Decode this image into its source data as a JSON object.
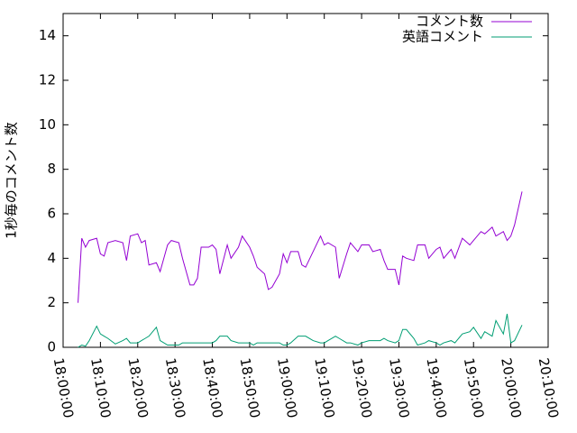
{
  "chart_data": {
    "type": "line",
    "y_label": "1秒毎のコメント数",
    "x": [
      "18:04:00",
      "18:05:00",
      "18:06:00",
      "18:07:00",
      "18:09:00",
      "18:10:00",
      "18:11:00",
      "18:12:00",
      "18:14:00",
      "18:16:00",
      "18:17:00",
      "18:18:00",
      "18:20:00",
      "18:21:00",
      "18:22:00",
      "18:23:00",
      "18:25:00",
      "18:26:00",
      "18:28:00",
      "18:29:00",
      "18:31:00",
      "18:32:00",
      "18:34:00",
      "18:35:00",
      "18:36:00",
      "18:37:00",
      "18:39:00",
      "18:40:00",
      "18:41:00",
      "18:42:00",
      "18:44:00",
      "18:45:00",
      "18:47:00",
      "18:48:00",
      "18:50:00",
      "18:51:00",
      "18:52:00",
      "18:54:00",
      "18:55:00",
      "18:56:00",
      "18:58:00",
      "18:59:00",
      "19:00:00",
      "19:01:00",
      "19:03:00",
      "19:04:00",
      "19:05:00",
      "19:07:00",
      "19:09:00",
      "19:10:00",
      "19:11:00",
      "19:13:00",
      "19:14:00",
      "19:16:00",
      "19:17:00",
      "19:19:00",
      "19:20:00",
      "19:22:00",
      "19:23:00",
      "19:25:00",
      "19:26:00",
      "19:27:00",
      "19:29:00",
      "19:30:00",
      "19:31:00",
      "19:32:00",
      "19:34:00",
      "19:35:00",
      "19:37:00",
      "19:38:00",
      "19:40:00",
      "19:41:00",
      "19:42:00",
      "19:44:00",
      "19:45:00",
      "19:47:00",
      "19:49:00",
      "19:50:00",
      "19:52:00",
      "19:53:00",
      "19:55:00",
      "19:56:00",
      "19:58:00",
      "19:59:00",
      "20:00:00",
      "20:01:00",
      "20:03:00"
    ],
    "series": [
      {
        "name": "コメント数",
        "color": "#9400d3",
        "values": [
          2.0,
          4.9,
          4.5,
          4.8,
          4.9,
          4.2,
          4.1,
          4.7,
          4.8,
          4.7,
          3.9,
          5.0,
          5.1,
          4.7,
          4.8,
          3.7,
          3.8,
          3.4,
          4.6,
          4.8,
          4.7,
          4.0,
          2.8,
          2.8,
          3.1,
          4.5,
          4.5,
          4.6,
          4.4,
          3.3,
          4.6,
          4.0,
          4.5,
          5.0,
          4.5,
          4.1,
          3.6,
          3.3,
          2.6,
          2.7,
          3.3,
          4.2,
          3.8,
          4.3,
          4.3,
          3.7,
          3.6,
          4.3,
          5.0,
          4.6,
          4.7,
          4.5,
          3.1,
          4.2,
          4.7,
          4.3,
          4.6,
          4.6,
          4.3,
          4.4,
          3.9,
          3.5,
          3.5,
          2.8,
          4.1,
          4.0,
          3.9,
          4.6,
          4.6,
          4.0,
          4.4,
          4.5,
          4.0,
          4.4,
          4.0,
          4.9,
          4.6,
          4.8,
          5.2,
          5.1,
          5.4,
          5.0,
          5.2,
          4.8,
          5.0,
          5.5,
          7.0
        ]
      },
      {
        "name": "英語コメント",
        "color": "#009e73",
        "values": [
          0.0,
          0.1,
          0.05,
          0.3,
          0.95,
          0.6,
          0.5,
          0.4,
          0.15,
          0.3,
          0.4,
          0.2,
          0.2,
          0.3,
          0.4,
          0.5,
          0.9,
          0.3,
          0.1,
          0.1,
          0.1,
          0.2,
          0.2,
          0.2,
          0.2,
          0.2,
          0.2,
          0.2,
          0.3,
          0.5,
          0.5,
          0.3,
          0.2,
          0.2,
          0.2,
          0.1,
          0.2,
          0.2,
          0.2,
          0.2,
          0.2,
          0.1,
          0.1,
          0.2,
          0.5,
          0.5,
          0.5,
          0.3,
          0.2,
          0.2,
          0.3,
          0.5,
          0.4,
          0.2,
          0.2,
          0.1,
          0.2,
          0.3,
          0.3,
          0.3,
          0.4,
          0.3,
          0.2,
          0.3,
          0.8,
          0.8,
          0.4,
          0.1,
          0.2,
          0.3,
          0.2,
          0.1,
          0.2,
          0.3,
          0.2,
          0.6,
          0.7,
          0.9,
          0.4,
          0.7,
          0.5,
          1.2,
          0.6,
          1.5,
          0.2,
          0.3,
          1.0
        ]
      }
    ],
    "xlim": [
      "18:00:00",
      "20:10:00"
    ],
    "xticks": [
      "18:00:00",
      "18:10:00",
      "18:20:00",
      "18:30:00",
      "18:40:00",
      "18:50:00",
      "19:00:00",
      "19:10:00",
      "19:20:00",
      "19:30:00",
      "19:40:00",
      "19:50:00",
      "20:00:00",
      "20:10:00"
    ],
    "ylim": [
      0,
      15
    ],
    "yticks": [
      0,
      2,
      4,
      6,
      8,
      10,
      12,
      14
    ],
    "legend": "top-right"
  }
}
